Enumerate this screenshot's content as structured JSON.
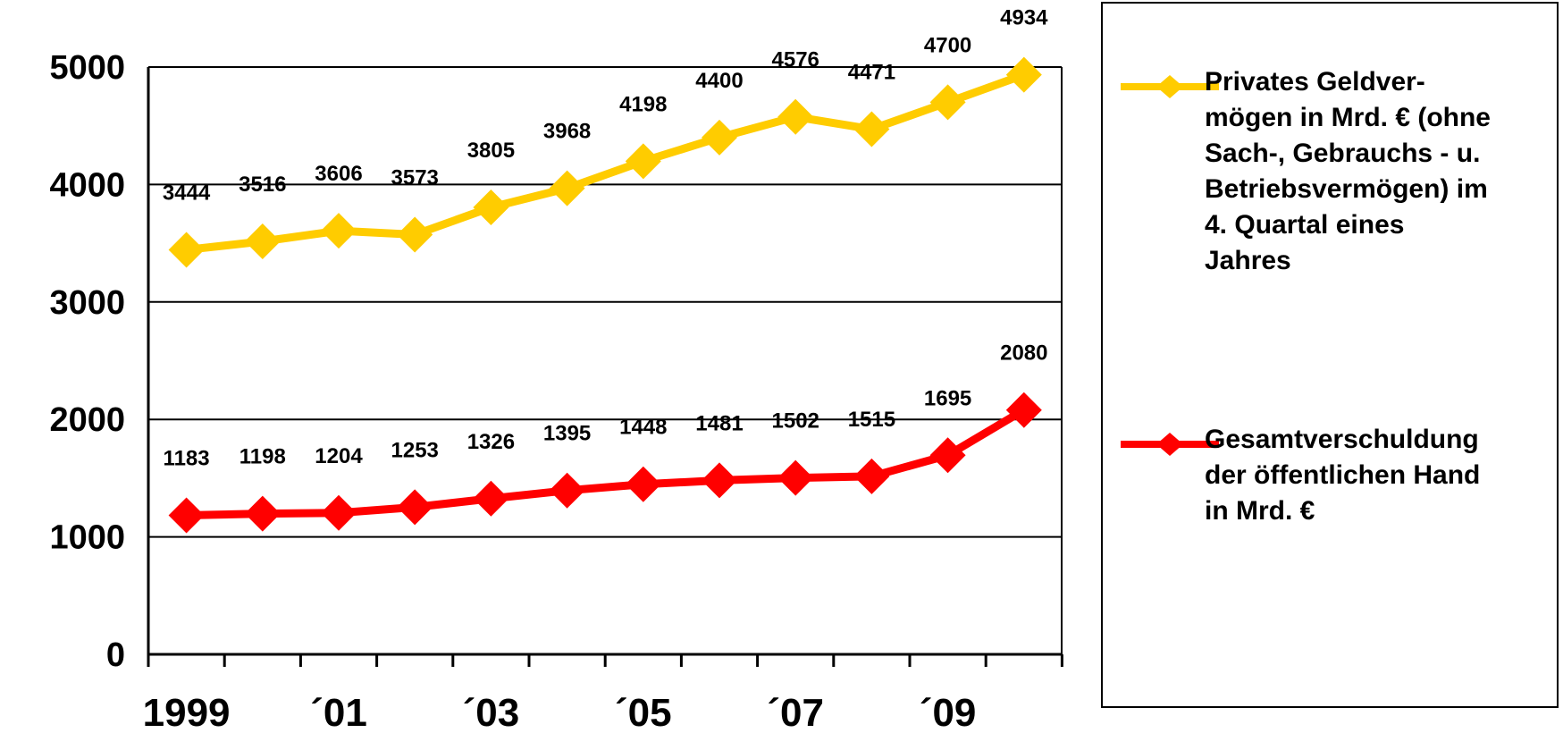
{
  "chart_data": {
    "type": "line",
    "x": [
      "1999",
      "2000",
      "2001",
      "2002",
      "2003",
      "2004",
      "2005",
      "2006",
      "2007",
      "2008",
      "2009",
      "2010"
    ],
    "x_tick_labels": [
      {
        "x": "1999",
        "label": "1999"
      },
      {
        "x": "2001",
        "label": "´01"
      },
      {
        "x": "2003",
        "label": "´03"
      },
      {
        "x": "2005",
        "label": "´05"
      },
      {
        "x": "2007",
        "label": "´07"
      },
      {
        "x": "2009",
        "label": "´09"
      }
    ],
    "y_ticks": [
      "0",
      "1000",
      "2000",
      "3000",
      "4000",
      "5000"
    ],
    "ylim": [
      0,
      5000
    ],
    "grid": "horizontal",
    "legend_position": "right",
    "series": [
      {
        "name": "Privates Geldver-\nmögen in Mrd. € (ohne\nSach-, Gebrauchs - u.\nBetriebsvermögen) im\n4. Quartal eines\nJahres",
        "color": "#FFCC00",
        "values": [
          3444,
          3516,
          3606,
          3573,
          3805,
          3968,
          4198,
          4400,
          4576,
          4471,
          4700,
          4934
        ],
        "labels": [
          "3444",
          "3516",
          "3606",
          "3573",
          "3805",
          "3968",
          "4198",
          "4400",
          "4576",
          "4471",
          "4700",
          "4934"
        ]
      },
      {
        "name": "Gesamtverschuldung\nder öffentlichen Hand\nin Mrd. €",
        "color": "#FF0000",
        "values": [
          1183,
          1198,
          1204,
          1253,
          1326,
          1395,
          1448,
          1481,
          1502,
          1515,
          1695,
          2080
        ],
        "labels": [
          "1183",
          "1198",
          "1204",
          "1253",
          "1326",
          "1395",
          "1448",
          "1481",
          "1502",
          "1515",
          "1695",
          "2080"
        ]
      }
    ]
  }
}
